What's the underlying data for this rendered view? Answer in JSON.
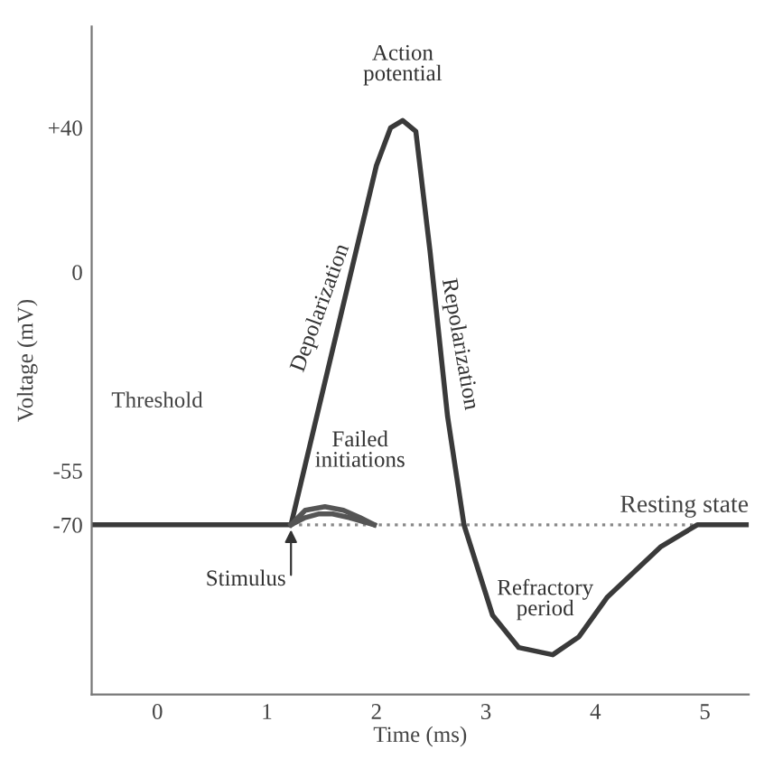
{
  "chart_data": {
    "type": "line",
    "xlabel": "Time (ms)",
    "ylabel": "Voltage (mV)",
    "xlim": [
      -0.6,
      5.4
    ],
    "xticks": [
      0,
      1,
      2,
      3,
      4,
      5
    ],
    "ylim": [
      -117,
      68
    ],
    "yticks": [
      {
        "value": 40,
        "label": "+40"
      },
      0,
      {
        "value": -55,
        "label": "-55"
      },
      {
        "value": -70,
        "label": "-70"
      }
    ],
    "grid": false,
    "marker": "none",
    "line_style": "solid",
    "series": [
      {
        "color": "#3a3a3a",
        "x": [
          -0.6,
          1.22,
          2.0,
          2.13,
          2.24,
          2.36,
          2.49,
          2.65,
          2.8,
          3.06,
          3.3,
          3.61,
          3.85,
          4.11,
          4.6,
          4.93,
          5.4
        ],
        "values": [
          -70,
          -70,
          29.5,
          40,
          42,
          39,
          5.7,
          -40,
          -70,
          -95,
          -104,
          -106,
          -101,
          -90,
          -76,
          -70,
          -70
        ]
      },
      {
        "color": "#555555",
        "x": [
          1.22,
          1.35,
          1.53,
          1.7,
          1.85,
          1.98
        ],
        "values": [
          -70,
          -66,
          -65,
          -66,
          -68,
          -70
        ]
      },
      {
        "color": "#555555",
        "x": [
          1.22,
          1.35,
          1.47,
          1.6,
          1.75,
          1.98
        ],
        "values": [
          -70,
          -68,
          -67,
          -67,
          -68,
          -70
        ]
      }
    ],
    "ref_lines": [
      {
        "axis": "y",
        "value": -70,
        "label": "Resting state",
        "color": "#888888",
        "line_style": "dotted"
      }
    ],
    "annotations": [
      "Threshold",
      {
        "text": "Action potential",
        "x": 2.24,
        "y": 42
      },
      {
        "text": "Depolarization",
        "x": 1.7,
        "y": -10
      },
      {
        "text": "Repolarization",
        "x": 2.55,
        "y": -20
      },
      {
        "text": "Failed initiations",
        "x": 1.53,
        "y": -65
      },
      {
        "text": "Stimulus",
        "x": 1.22,
        "y": -70
      },
      {
        "text": "Refractory period",
        "x": 3.61,
        "y": -106
      }
    ]
  }
}
